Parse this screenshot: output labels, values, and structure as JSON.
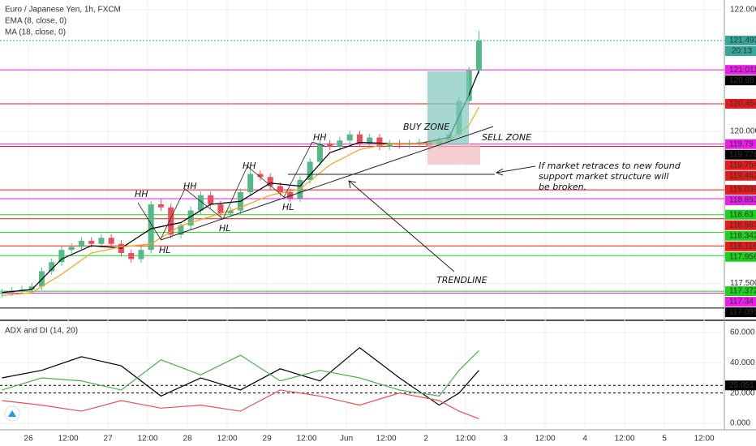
{
  "chart_data": [
    {
      "type": "candlestick",
      "title": "Euro / Japanese Yen, 1h, FXCM",
      "countdown": "20:13",
      "x": [
        -8,
        -5,
        -2,
        1,
        4,
        7,
        10,
        13,
        16,
        19,
        22,
        25,
        28,
        31,
        34,
        37,
        40,
        43,
        46,
        49,
        52,
        55,
        58,
        61,
        64,
        67,
        70,
        73,
        76,
        79,
        82,
        85,
        88,
        91,
        94,
        97,
        100,
        103,
        106,
        109,
        112,
        115,
        118,
        121,
        124,
        127,
        130,
        133,
        136
      ],
      "open": [
        117.33,
        117.35,
        117.38,
        117.4,
        117.45,
        117.7,
        117.85,
        118.05,
        118.1,
        118.2,
        118.15,
        118.25,
        118.15,
        118.0,
        117.9,
        118.05,
        118.8,
        118.75,
        118.3,
        118.45,
        118.7,
        118.95,
        118.8,
        118.65,
        118.7,
        119.0,
        119.3,
        119.25,
        119.1,
        119.0,
        118.9,
        119.2,
        119.5,
        119.8,
        119.75,
        119.85,
        119.95,
        119.8,
        119.9,
        119.75,
        119.8,
        119.78,
        119.8,
        119.82,
        119.75,
        119.85,
        119.95,
        120.5,
        121.0
      ],
      "high": [
        117.41,
        117.44,
        117.46,
        117.51,
        117.76,
        117.91,
        118.11,
        118.16,
        118.26,
        118.26,
        118.31,
        118.31,
        118.21,
        118.06,
        118.11,
        118.86,
        118.9,
        118.81,
        118.51,
        118.76,
        119.01,
        119.01,
        118.86,
        118.76,
        119.06,
        119.4,
        119.36,
        119.31,
        119.16,
        119.06,
        119.26,
        119.56,
        119.86,
        119.86,
        119.91,
        120.01,
        120.01,
        119.96,
        119.96,
        119.86,
        119.86,
        119.86,
        119.88,
        119.88,
        119.91,
        120.01,
        120.56,
        121.06,
        121.65
      ],
      "low": [
        117.27,
        117.29,
        117.32,
        117.34,
        117.39,
        117.64,
        117.79,
        117.99,
        118.04,
        118.09,
        118.09,
        118.09,
        117.94,
        117.84,
        117.84,
        117.99,
        118.69,
        118.24,
        118.24,
        118.39,
        118.64,
        118.74,
        118.59,
        118.59,
        118.64,
        118.94,
        119.19,
        119.04,
        118.94,
        118.84,
        118.84,
        119.14,
        119.44,
        119.69,
        119.69,
        119.79,
        119.74,
        119.74,
        119.69,
        119.69,
        119.72,
        119.72,
        119.74,
        119.69,
        119.69,
        119.79,
        119.89,
        120.44,
        120.94
      ],
      "close": [
        117.35,
        117.38,
        117.4,
        117.45,
        117.7,
        117.85,
        118.05,
        118.1,
        118.2,
        118.15,
        118.25,
        118.15,
        118.0,
        117.9,
        118.05,
        118.8,
        118.75,
        118.3,
        118.45,
        118.7,
        118.95,
        118.8,
        118.65,
        118.7,
        119.0,
        119.3,
        119.25,
        119.1,
        119.0,
        118.9,
        119.2,
        119.5,
        119.8,
        119.75,
        119.85,
        119.95,
        119.8,
        119.9,
        119.75,
        119.8,
        119.78,
        119.8,
        119.82,
        119.75,
        119.85,
        119.95,
        120.5,
        121.0,
        121.49
      ],
      "up_color": "#53b987",
      "down_color": "#eb4d5c",
      "series": [
        {
          "name": "EMA (8, close, 0)",
          "color": "#000000",
          "x": [
            -8,
            1,
            10,
            19,
            28,
            37,
            46,
            55,
            64,
            73,
            82,
            91,
            100,
            109,
            118,
            127,
            133,
            136
          ],
          "values": [
            117.35,
            117.4,
            117.9,
            118.12,
            118.08,
            118.4,
            118.5,
            118.8,
            118.85,
            119.15,
            119.1,
            119.65,
            119.82,
            119.8,
            119.8,
            119.9,
            120.6,
            121.0
          ]
        },
        {
          "name": "MA (18, close, 0)",
          "color": "#f7a21b",
          "x": [
            -8,
            1,
            10,
            19,
            28,
            37,
            46,
            55,
            64,
            73,
            82,
            91,
            100,
            109,
            118,
            127,
            133,
            136
          ],
          "values": [
            117.3,
            117.35,
            117.65,
            118.0,
            118.1,
            118.15,
            118.45,
            118.6,
            118.75,
            118.95,
            119.05,
            119.45,
            119.7,
            119.8,
            119.8,
            119.85,
            120.1,
            120.4
          ]
        }
      ],
      "levels": [
        {
          "value": 121.493,
          "color": "#35a79b",
          "line": true
        },
        {
          "value": 121.011,
          "color": "#e91ee9",
          "line": true
        },
        {
          "value": 120.98,
          "color": "#000000",
          "line": false
        },
        {
          "value": 120.454,
          "color": "#e51b1b",
          "line": true
        },
        {
          "value": 119.79,
          "color": "#e91ee9",
          "line": true
        },
        {
          "value": 119.778,
          "color": "#000000",
          "line": false
        },
        {
          "value": 119.754,
          "color": "#e51b1b",
          "line": true
        },
        {
          "value": 119.462,
          "color": "#e51b1b",
          "line": false
        },
        {
          "value": 119.039,
          "color": "#e51b1b",
          "line": true
        },
        {
          "value": 118.893,
          "color": "#e91ee9",
          "line": true
        },
        {
          "value": 118.63,
          "color": "#1fd11f",
          "line": true
        },
        {
          "value": 118.563,
          "color": "#e51b1b",
          "line": true
        },
        {
          "value": 118.342,
          "color": "#1fd11f",
          "line": true
        },
        {
          "value": 118.116,
          "color": "#e51b1b",
          "line": true
        },
        {
          "value": 117.956,
          "color": "#1fd11f",
          "line": true
        },
        {
          "value": 117.372,
          "color": "#1fd11f",
          "line": true
        },
        {
          "value": 117.34,
          "color": "#e91ee9",
          "line": true
        },
        {
          "value": 117.095,
          "color": "#000000",
          "line": true
        }
      ],
      "annotations": {
        "hh": [
          "HH",
          "HH",
          "HH",
          "HH"
        ],
        "hl": [
          "HL",
          "HL",
          "HL"
        ],
        "buy_zone": "BUY ZONE",
        "sell_zone": "SELL ZONE",
        "trendline": "TRENDLINE",
        "note": [
          "If market retraces to new found",
          "support market structure will",
          "be broken."
        ]
      },
      "xlim": [
        -8.6,
        210.1
      ],
      "ylim": [
        116.92,
        122.16
      ],
      "yticks": [
        {
          "value": 122,
          "label": "122.000"
        },
        {
          "value": 120,
          "label": "120.000"
        },
        {
          "value": 117.5,
          "label": "117.500"
        }
      ],
      "grid": true
    },
    {
      "type": "line",
      "title": "ADX and DI (14, 20)",
      "series": [
        {
          "color": "#000000",
          "x": [
            -8,
            4,
            16,
            28,
            40,
            52,
            64,
            76,
            88,
            100,
            112,
            124,
            130,
            136
          ],
          "values": [
            30,
            35,
            44,
            38,
            18,
            30,
            22,
            36,
            28,
            50,
            30,
            12,
            20,
            35
          ]
        },
        {
          "color": "#4caf50",
          "x": [
            -8,
            4,
            16,
            28,
            40,
            52,
            64,
            76,
            88,
            100,
            112,
            124,
            130,
            136
          ],
          "values": [
            22,
            30,
            28,
            22,
            42,
            32,
            45,
            28,
            35,
            30,
            22,
            18,
            35,
            48
          ]
        },
        {
          "color": "#e55353",
          "x": [
            -8,
            4,
            16,
            28,
            40,
            52,
            64,
            76,
            88,
            100,
            112,
            124,
            130,
            136
          ],
          "values": [
            15,
            12,
            8,
            15,
            10,
            12,
            8,
            22,
            18,
            12,
            20,
            15,
            8,
            3
          ]
        }
      ],
      "level": {
        "value": 25.051,
        "label": "25.051"
      },
      "threshold": 20,
      "xlim": [
        -8.6,
        210.1
      ],
      "ylim": [
        -4.3,
        67
      ],
      "yticks": [
        {
          "value": 60,
          "label": "60.000"
        },
        {
          "value": 40,
          "label": "40.000"
        },
        {
          "value": 20,
          "label": "20.000"
        },
        {
          "value": 0,
          "label": "0.000"
        }
      ],
      "xticks": [
        {
          "value": 0,
          "label": "26"
        },
        {
          "value": 12,
          "label": "12:00"
        },
        {
          "value": 24,
          "label": "27"
        },
        {
          "value": 36,
          "label": "12:00"
        },
        {
          "value": 48,
          "label": "28"
        },
        {
          "value": 60,
          "label": "12:00"
        },
        {
          "value": 72,
          "label": "29"
        },
        {
          "value": 84,
          "label": "12:00"
        },
        {
          "value": 96,
          "label": "Jun"
        },
        {
          "value": 108,
          "label": "12:00"
        },
        {
          "value": 120,
          "label": "2"
        },
        {
          "value": 132,
          "label": "12:00"
        },
        {
          "value": 144,
          "label": "3"
        },
        {
          "value": 156,
          "label": "12:00"
        },
        {
          "value": 168,
          "label": "4"
        },
        {
          "value": 180,
          "label": "12:00"
        },
        {
          "value": 192,
          "label": "5"
        },
        {
          "value": 204,
          "label": "12:00"
        }
      ],
      "grid": true
    }
  ]
}
